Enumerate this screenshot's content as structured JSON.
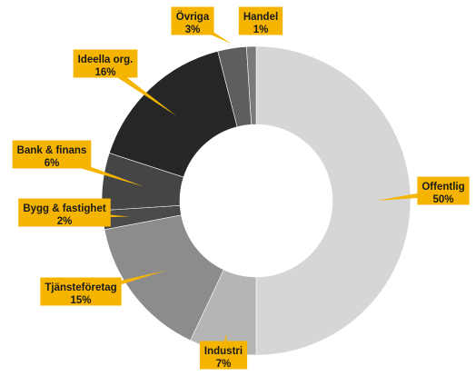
{
  "chart_data": {
    "type": "pie",
    "donut": true,
    "title": "",
    "slices": [
      {
        "label": "Offentlig",
        "value": 50,
        "display": "50%",
        "color": "#d6d6d6"
      },
      {
        "label": "Industri",
        "value": 7,
        "display": "7%",
        "color": "#b5b5b5"
      },
      {
        "label": "Tjänsteföretag",
        "value": 15,
        "display": "15%",
        "color": "#8c8c8c"
      },
      {
        "label": "Bygg & fastighet",
        "value": 2,
        "display": "2%",
        "color": "#4a4a4a"
      },
      {
        "label": "Bank & finans",
        "value": 6,
        "display": "6%",
        "color": "#454545"
      },
      {
        "label": "Ideella org.",
        "value": 16,
        "display": "16%",
        "color": "#262626"
      },
      {
        "label": "Övriga",
        "value": 3,
        "display": "3%",
        "color": "#5e5e5e"
      },
      {
        "label": "Handel",
        "value": 1,
        "display": "1%",
        "color": "#7a7a7a"
      }
    ],
    "label_color": "#f5b400"
  }
}
